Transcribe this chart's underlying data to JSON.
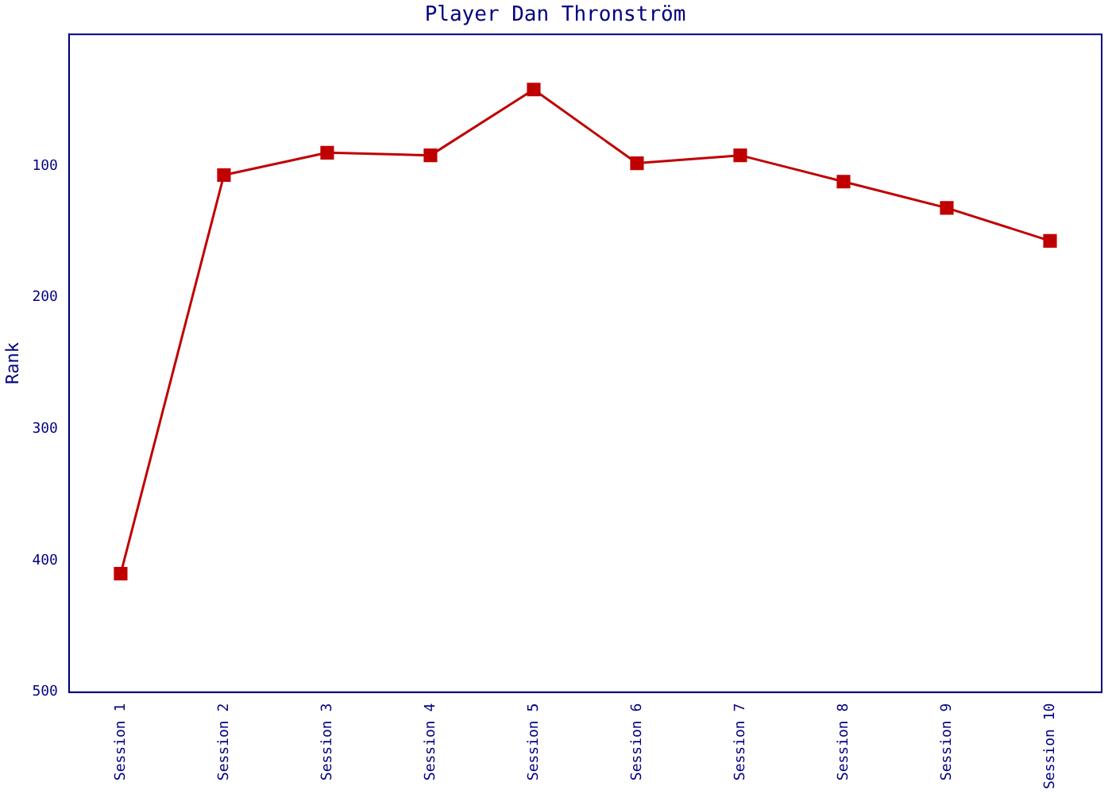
{
  "chart_data": {
    "type": "line",
    "title": "Player Dan Thronström",
    "ylabel": "Rank",
    "categories": [
      "Session 1",
      "Session 2",
      "Session 3",
      "Session 4",
      "Session 5",
      "Session 6",
      "Session 7",
      "Session 8",
      "Session 9",
      "Session 10"
    ],
    "series": [
      {
        "color": "#c00000",
        "values": [
          410,
          107,
          90,
          92,
          42,
          98,
          92,
          112,
          132,
          157
        ]
      }
    ],
    "ylim": [
      500,
      0
    ],
    "yticks": [
      100,
      200,
      300,
      400,
      500
    ],
    "grid": false,
    "legend": false,
    "marker": "square",
    "line_style": "solid"
  }
}
